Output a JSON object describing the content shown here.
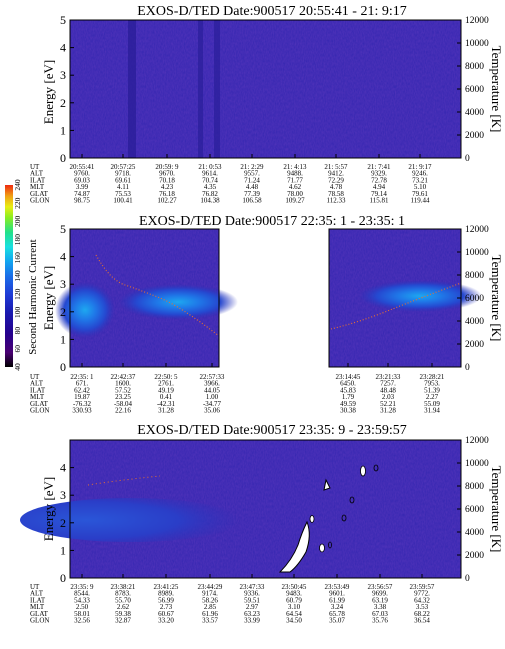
{
  "chart_data": [
    {
      "type": "heatmap",
      "title": "EXOS-D/TED   Date:900517  20:55:41 - 21: 9:17",
      "ylabel": "Energy [eV]",
      "y2label": "Temperature [K]",
      "ylim": [
        0,
        5
      ],
      "y2lim": [
        0,
        12000
      ],
      "yticks": [
        "0",
        "1",
        "2",
        "3",
        "4",
        "5"
      ],
      "y2ticks": [
        "0",
        "2000",
        "4000",
        "6000",
        "8000",
        "10000",
        "12000"
      ],
      "orbit_table": {
        "row_labels": [
          "UT",
          "ALT",
          "ILAT",
          "MLT",
          "GLAT",
          "GLON"
        ],
        "columns": [
          [
            "20:55:41",
            "9760.",
            "69.03",
            "3.99",
            "74.87",
            "98.75"
          ],
          [
            "20:57:25",
            "9718.",
            "69.61",
            "4.11",
            "75.53",
            "100.41"
          ],
          [
            "20:59: 9",
            "9670.",
            "70.18",
            "4.23",
            "76.18",
            "102.27"
          ],
          [
            "21: 0:53",
            "9614.",
            "70.74",
            "4.35",
            "76.82",
            "104.38"
          ],
          [
            "21: 2:29",
            "9557.",
            "71.24",
            "4.48",
            "77.39",
            "106.58"
          ],
          [
            "21: 4:13",
            "9488.",
            "71.77",
            "4.62",
            "78.00",
            "109.27"
          ],
          [
            "21: 5:57",
            "9412.",
            "72.29",
            "4.78",
            "78.58",
            "112.33"
          ],
          [
            "21: 7:41",
            "9329.",
            "72.78",
            "4.94",
            "79.14",
            "115.81"
          ],
          [
            "21: 9:17",
            "9246.",
            "73.21",
            "5.10",
            "79.61",
            "119.44"
          ]
        ]
      }
    },
    {
      "type": "heatmap",
      "title": "EXOS-D/TED   Date:900517  22:35: 1 - 23:35: 1",
      "ylabel": "Energy [eV]",
      "y2label": "Temperature [K]",
      "ylim": [
        0,
        5
      ],
      "y2lim": [
        0,
        12000
      ],
      "yticks": [
        "0",
        "1",
        "2",
        "3",
        "4",
        "5"
      ],
      "y2ticks": [
        "0",
        "2000",
        "4000",
        "6000",
        "8000",
        "10000",
        "12000"
      ],
      "colorbar": {
        "label": "Second Harmonic Current",
        "ticks": [
          "40",
          "60",
          "80",
          "100",
          "120",
          "140",
          "160",
          "180",
          "200",
          "220",
          "240"
        ],
        "colors": [
          "#000000",
          "#4a0073",
          "#25008c",
          "#1a1ab0",
          "#1f3cd6",
          "#1a6ee8",
          "#12a5f0",
          "#1ae0e0",
          "#22e08a",
          "#88ee22",
          "#e8ee14",
          "#f0a014",
          "#ee2a10"
        ]
      },
      "orbit_table": {
        "row_labels": [
          "UT",
          "ALT",
          "ILAT",
          "MLT",
          "GLAT",
          "GLON"
        ],
        "columns": [
          [
            "22:35: 1",
            "671.",
            "62.42",
            "19.87",
            "-76.32",
            "330.93"
          ],
          [
            "22:42:37",
            "1600.",
            "57.52",
            "23.25",
            "-58.04",
            "22.16"
          ],
          [
            "22:50: 5",
            "2761.",
            "49.19",
            "0.41",
            "-42.31",
            "31.28"
          ],
          [
            "22:57:33",
            "3966.",
            "44.05",
            "1.00",
            "-34.77",
            "35.06"
          ],
          [
            "23:14:45",
            "6450.",
            "45.83",
            "1.79",
            "49.59",
            "30.38"
          ],
          [
            "23:21:33",
            "7257.",
            "48.48",
            "2.03",
            "52.21",
            "31.28"
          ],
          [
            "23:28:21",
            "7953.",
            "51.39",
            "2.27",
            "55.09",
            "31.94"
          ]
        ]
      }
    },
    {
      "type": "heatmap",
      "title": "EXOS-D/TED   Date:900517  23:35: 9 - 23:59:57",
      "ylabel": "Energy [eV]",
      "y2label": "Temperature [K]",
      "ylim": [
        0,
        5
      ],
      "y2lim": [
        0,
        12000
      ],
      "yticks": [
        "0",
        "1",
        "2",
        "3",
        "4"
      ],
      "y2ticks": [
        "0",
        "2000",
        "4000",
        "6000",
        "8000",
        "10000",
        "12000"
      ],
      "orbit_table": {
        "row_labels": [
          "UT",
          "ALT",
          "ILAT",
          "MLT",
          "GLAT",
          "GLON"
        ],
        "columns": [
          [
            "23:35: 9",
            "8544.",
            "54.33",
            "2.50",
            "58.01",
            "32.56"
          ],
          [
            "23:38:21",
            "8783.",
            "55.70",
            "2.62",
            "59.38",
            "32.87"
          ],
          [
            "23:41:25",
            "8989.",
            "56.99",
            "2.73",
            "60.67",
            "33.20"
          ],
          [
            "23:44:29",
            "9174.",
            "58.26",
            "2.85",
            "61.96",
            "33.57"
          ],
          [
            "23:47:33",
            "9336.",
            "59.51",
            "2.97",
            "63.23",
            "33.99"
          ],
          [
            "23:50:45",
            "9483.",
            "60.79",
            "3.10",
            "64.54",
            "34.50"
          ],
          [
            "23:53:49",
            "9601.",
            "61.99",
            "3.24",
            "65.78",
            "35.07"
          ],
          [
            "23:56:57",
            "9699.",
            "63.19",
            "3.38",
            "67.03",
            "35.76"
          ],
          [
            "23:59:57",
            "9772.",
            "64.32",
            "3.53",
            "68.22",
            "36.54"
          ]
        ]
      }
    }
  ]
}
